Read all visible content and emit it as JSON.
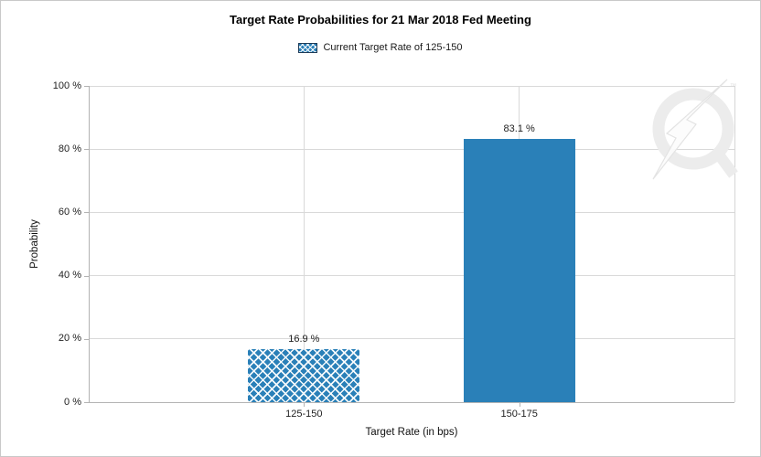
{
  "window": {
    "background": "#ffffff",
    "border_color": "#c9c9c9"
  },
  "header": {
    "title": "Target Rate Probabilities for 21 Mar 2018 Fed Meeting"
  },
  "legend": {
    "label": "Current Target Rate of 125-150",
    "swatch_style": "crosshatch"
  },
  "watermark": {
    "name": "quandl-logo"
  },
  "chart_data": {
    "type": "bar",
    "title": "Target Rate Probabilities for 21 Mar 2018 Fed Meeting",
    "categories": [
      "125-150",
      "150-175"
    ],
    "values": [
      16.9,
      83.1
    ],
    "data_labels": [
      "16.9 %",
      "83.1 %"
    ],
    "bar_styles": [
      "crosshatch",
      "solid"
    ],
    "series_name": "Current Target Rate of 125-150",
    "xlabel": "Target Rate (in bps)",
    "ylabel": "Probability",
    "ylim": [
      0,
      100
    ],
    "ytick_step": 20,
    "ytick_labels": [
      "0 %",
      "20 %",
      "40 %",
      "60 %",
      "80 %",
      "100 %"
    ],
    "grid": true,
    "legend_position": "top-center",
    "colors": {
      "bar": "#2a80b8",
      "hatch_line": "#ffffff",
      "grid": "#d9d9d9",
      "axis": "#b3b3b3",
      "plot_border": "#d6d6d6",
      "text": "#222222",
      "legend_swatch_border": "#1f3b57",
      "watermark": "#ececec"
    }
  }
}
